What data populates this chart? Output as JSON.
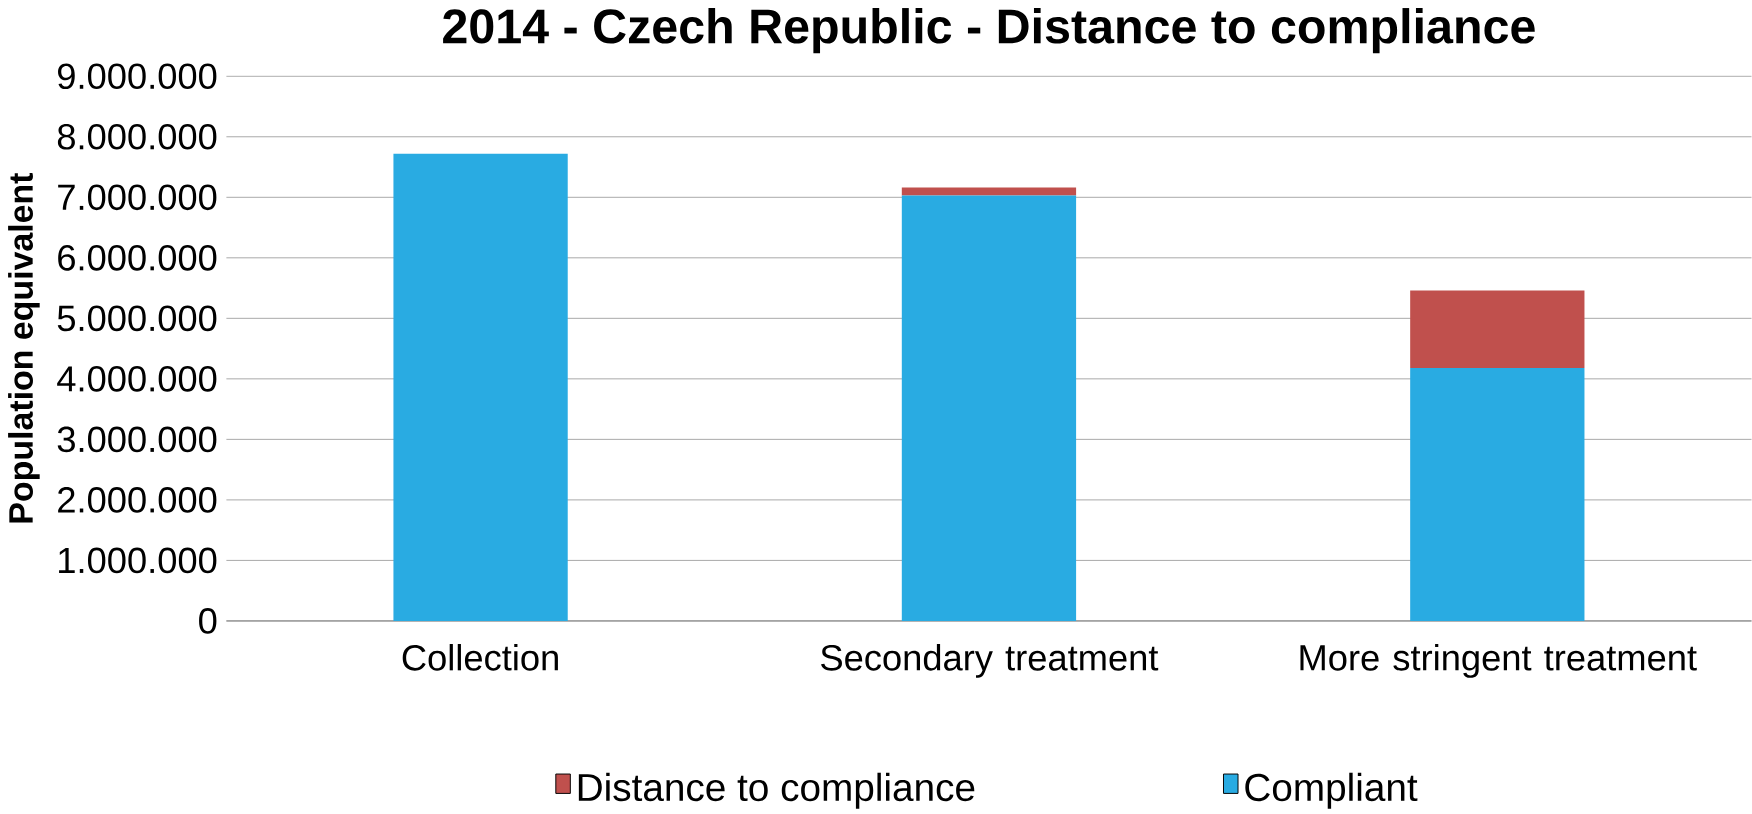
{
  "chart_data": {
    "type": "bar",
    "title": "2014 - Czech Republic - Distance to compliance",
    "ylabel": "Population equivalent",
    "categories": [
      "Collection",
      "Secondary treatment",
      "More stringent treatment"
    ],
    "series": [
      {
        "name": "Compliant",
        "color": "#29abe2",
        "values": [
          7720000,
          7030000,
          4180000
        ]
      },
      {
        "name": "Distance to compliance",
        "color": "#c0504d",
        "values": [
          0,
          130000,
          1280000
        ]
      }
    ],
    "stacked": true,
    "ylim": [
      0,
      9000000
    ],
    "yticks": [
      {
        "value": 0,
        "label": "0"
      },
      {
        "value": 1000000,
        "label": "1.000.000"
      },
      {
        "value": 2000000,
        "label": "2.000.000"
      },
      {
        "value": 3000000,
        "label": "3.000.000"
      },
      {
        "value": 4000000,
        "label": "4.000.000"
      },
      {
        "value": 5000000,
        "label": "5.000.000"
      },
      {
        "value": 6000000,
        "label": "6.000.000"
      },
      {
        "value": 7000000,
        "label": "7.000.000"
      },
      {
        "value": 8000000,
        "label": "8.000.000"
      },
      {
        "value": 9000000,
        "label": "9.000.000"
      }
    ],
    "grid": "y",
    "legend": "bottom"
  }
}
